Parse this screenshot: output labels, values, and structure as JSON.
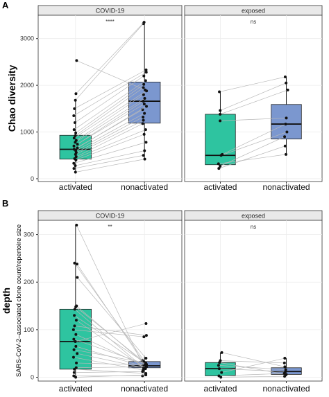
{
  "colors": {
    "activated": "#2ec4a0",
    "nonactivated": "#7b97cf",
    "strip": "#e9e9e9",
    "line": "#b8b8b8",
    "point": "#111111"
  },
  "chart_data": [
    {
      "panel_letter": "A",
      "type": "box",
      "ylabel": "Chao diversity",
      "ylabel_sub": "",
      "yticks": [
        0,
        1000,
        2000,
        3000
      ],
      "ylim": [
        -60,
        3500
      ],
      "categories": [
        "activated",
        "nonactivated"
      ],
      "grid": true,
      "facets": [
        {
          "label": "COVID-19",
          "significance": "****",
          "boxes": [
            {
              "category": "activated",
              "min": 140,
              "q1": 420,
              "median": 630,
              "q3": 930,
              "max": 1700
            },
            {
              "category": "nonactivated",
              "min": 430,
              "q1": 1190,
              "median": 1660,
              "q3": 2070,
              "max": 3350
            }
          ],
          "pairs": [
            [
              140,
              420
            ],
            [
              220,
              500
            ],
            [
              280,
              600
            ],
            [
              330,
              780
            ],
            [
              400,
              950
            ],
            [
              430,
              1050
            ],
            [
              470,
              1180
            ],
            [
              520,
              1250
            ],
            [
              560,
              1320
            ],
            [
              600,
              1400
            ],
            [
              630,
              1480
            ],
            [
              660,
              1550
            ],
            [
              700,
              1600
            ],
            [
              740,
              1660
            ],
            [
              780,
              1720
            ],
            [
              820,
              1800
            ],
            [
              870,
              1880
            ],
            [
              920,
              1950
            ],
            [
              980,
              2020
            ],
            [
              1050,
              2100
            ],
            [
              1200,
              2200
            ],
            [
              1350,
              2280
            ],
            [
              1500,
              2330
            ],
            [
              1680,
              3320
            ],
            [
              1820,
              3350
            ],
            [
              2530,
              1900
            ]
          ]
        },
        {
          "label": "exposed",
          "significance": "ns",
          "boxes": [
            {
              "category": "activated",
              "min": 220,
              "q1": 300,
              "median": 500,
              "q3": 1380,
              "max": 1860
            },
            {
              "category": "nonactivated",
              "min": 520,
              "q1": 850,
              "median": 1170,
              "q3": 1590,
              "max": 2180
            }
          ],
          "pairs": [
            [
              220,
              700
            ],
            [
              270,
              900
            ],
            [
              320,
              520
            ],
            [
              500,
              1000
            ],
            [
              520,
              1170
            ],
            [
              1240,
              1300
            ],
            [
              1380,
              1900
            ],
            [
              1460,
              2050
            ],
            [
              1860,
              2180
            ]
          ]
        }
      ]
    },
    {
      "panel_letter": "B",
      "type": "box",
      "ylabel": "depth",
      "ylabel_sub": "SARS-CoV-2–associated clone count/repertoire size",
      "yticks": [
        0,
        100,
        200,
        300
      ],
      "ylim": [
        -8,
        330
      ],
      "categories": [
        "activated",
        "nonactivated"
      ],
      "grid": true,
      "facets": [
        {
          "label": "COVID-19",
          "significance": "**",
          "boxes": [
            {
              "category": "activated",
              "min": 0,
              "q1": 17,
              "median": 75,
              "q3": 143,
              "max": 320
            },
            {
              "category": "nonactivated",
              "min": 3,
              "q1": 20,
              "median": 24,
              "q3": 33,
              "max": 45
            }
          ],
          "pairs": [
            [
              320,
              25
            ],
            [
              240,
              30
            ],
            [
              238,
              22
            ],
            [
              210,
              40
            ],
            [
              150,
              28
            ],
            [
              148,
              35
            ],
            [
              143,
              20
            ],
            [
              130,
              32
            ],
            [
              120,
              18
            ],
            [
              108,
              88
            ],
            [
              100,
              85
            ],
            [
              90,
              24
            ],
            [
              80,
              27
            ],
            [
              75,
              113
            ],
            [
              65,
              22
            ],
            [
              58,
              30
            ],
            [
              50,
              20
            ],
            [
              42,
              15
            ],
            [
              30,
              26
            ],
            [
              20,
              22
            ],
            [
              17,
              8
            ],
            [
              10,
              12
            ],
            [
              3,
              3
            ],
            [
              0,
              5
            ]
          ]
        },
        {
          "label": "exposed",
          "significance": "ns",
          "boxes": [
            {
              "category": "activated",
              "min": 0,
              "q1": 3,
              "median": 18,
              "q3": 31,
              "max": 52
            },
            {
              "category": "nonactivated",
              "min": 2,
              "q1": 6,
              "median": 12,
              "q3": 20,
              "max": 40
            }
          ],
          "pairs": [
            [
              52,
              22
            ],
            [
              35,
              30
            ],
            [
              31,
              6
            ],
            [
              25,
              16
            ],
            [
              18,
              12
            ],
            [
              10,
              40
            ],
            [
              3,
              8
            ],
            [
              0,
              2
            ]
          ]
        }
      ]
    }
  ]
}
